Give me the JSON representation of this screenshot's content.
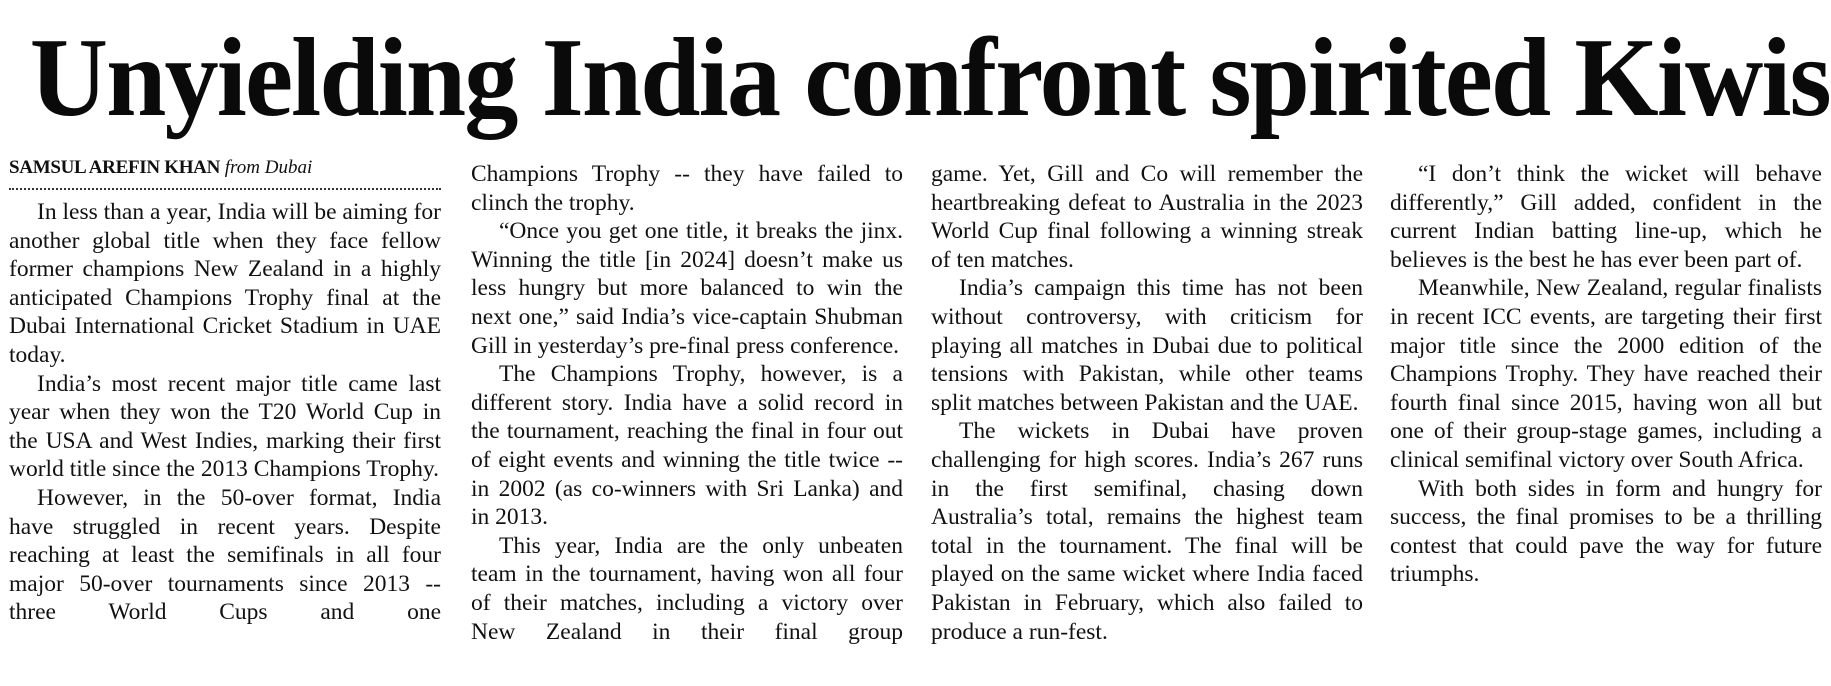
{
  "headline": "Unyielding India confront spirited Kiwis",
  "byline": {
    "author": "SAMSUL AREFIN KHAN",
    "location": "from Dubai"
  },
  "columns": [
    {
      "paragraphs": [
        {
          "text": "In less than a year, India will be aiming for another global title when they face fellow former champions New Zealand in a highly anticipated Champions Trophy final at the Dubai International Cricket Stadium in UAE today."
        },
        {
          "text": "India’s most recent major title came last year when they won the T20 World Cup in the USA and West Indies, marking their first world title since the 2013 Champions Trophy."
        },
        {
          "text": "However, in the 50-over format, India have struggled in recent years. Despite reaching at least the semifinals in all four major 50-over tournaments since 2013 -- three World Cups and one"
        }
      ]
    },
    {
      "paragraphs": [
        {
          "text": "Champions Trophy -- they have failed to clinch the trophy."
        },
        {
          "text": "“Once you get one title, it breaks the jinx. Winning the title [in 2024] doesn’t make us less hungry but more balanced to win the next one,” said India’s vice-captain Shubman Gill in yesterday’s pre-final press conference."
        },
        {
          "text": "The Champions Trophy, however, is a different story. India have a solid record in the tournament, reaching the final in four out of eight events and winning the title twice -- in 2002 (as co-winners with Sri Lanka) and in 2013."
        },
        {
          "text": "This year, India are the only unbeaten team in the tournament, having won all four of their matches, including a victory over New Zealand in their final group"
        }
      ]
    },
    {
      "paragraphs": [
        {
          "text": "game. Yet, Gill and Co will remember the heartbreaking defeat to Australia in the 2023 World Cup final following a winning streak of ten matches."
        },
        {
          "text": "India’s campaign this time has not been without controversy, with criticism for playing all matches in Dubai due to political tensions with Pakistan, while other teams split matches between Pakistan and the UAE."
        },
        {
          "text": "The wickets in Dubai have proven challenging for high scores. India’s 267 runs in the first semifinal, chasing down Australia’s total, remains the highest team total in the tournament. The final will be played on the same wicket where India faced Pakistan in February, which also failed to produce a run-fest."
        }
      ]
    },
    {
      "paragraphs": [
        {
          "text": "“I don’t think the wicket will behave differently,” Gill added, confident in the current Indian batting line-up, which he believes is the best he has ever been part of."
        },
        {
          "text": "Meanwhile, New Zealand, regular finalists in recent ICC events, are targeting their first major title since the 2000 edition of the Champions Trophy. They have reached their fourth final since 2015, having won all but one of their group-stage games, including a clinical semifinal victory over South Africa."
        },
        {
          "text": "With both sides in form and hungry for success, the final promises to be a thrilling contest that could pave the way for future triumphs."
        }
      ]
    }
  ]
}
